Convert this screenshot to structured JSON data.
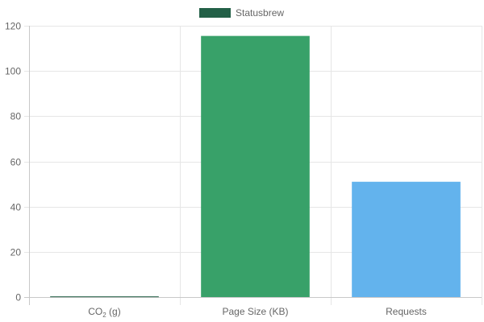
{
  "legend": {
    "label": "Statusbrew",
    "color": "#236047"
  },
  "chart_data": {
    "type": "bar",
    "categories": [
      {
        "label": "CO",
        "sub": "2",
        "suffix": " (g)"
      },
      {
        "label": "Page Size (KB)"
      },
      {
        "label": "Requests"
      }
    ],
    "series": [
      {
        "name": "Statusbrew",
        "values": [
          0.3,
          115.5,
          51
        ],
        "colors": [
          "#236047",
          "#38A169",
          "#63B3ED"
        ]
      }
    ],
    "ylim": [
      0,
      120
    ],
    "yticks": [
      0,
      20,
      40,
      60,
      80,
      100,
      120
    ],
    "grid": true,
    "legend_position": "top"
  }
}
